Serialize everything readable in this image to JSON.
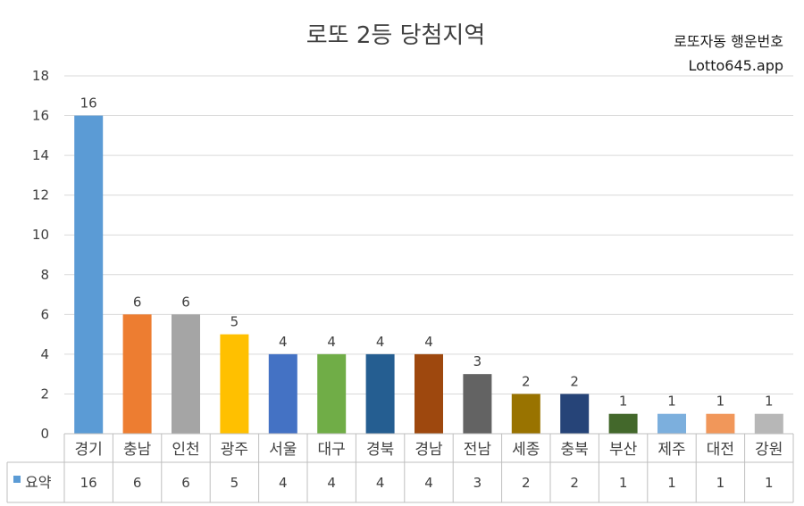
{
  "chart_data": {
    "type": "bar",
    "title": "로또 2등 당첨지역",
    "categories": [
      "경기",
      "충남",
      "인천",
      "광주",
      "서울",
      "대구",
      "경북",
      "경남",
      "전남",
      "세종",
      "충북",
      "부산",
      "제주",
      "대전",
      "강원"
    ],
    "series": [
      {
        "name": "요약",
        "values": [
          16,
          6,
          6,
          5,
          4,
          4,
          4,
          4,
          3,
          2,
          2,
          1,
          1,
          1,
          1
        ],
        "colors": [
          "#5b9bd5",
          "#ed7d31",
          "#a5a5a5",
          "#ffc000",
          "#4472c4",
          "#70ad47",
          "#255e91",
          "#9e480e",
          "#636363",
          "#997300",
          "#264478",
          "#43682b",
          "#7cafdd",
          "#f1975a",
          "#b7b7b7"
        ]
      }
    ],
    "ylim": [
      0,
      18
    ],
    "yticks": [
      0,
      2,
      4,
      6,
      8,
      10,
      12,
      14,
      16,
      18
    ],
    "grid": true,
    "data_labels": true,
    "data_table": true,
    "legend_key_color": "#5b9bd5"
  },
  "watermark": {
    "line1": "로또자동 행운번호",
    "line2": "Lotto645.app"
  }
}
